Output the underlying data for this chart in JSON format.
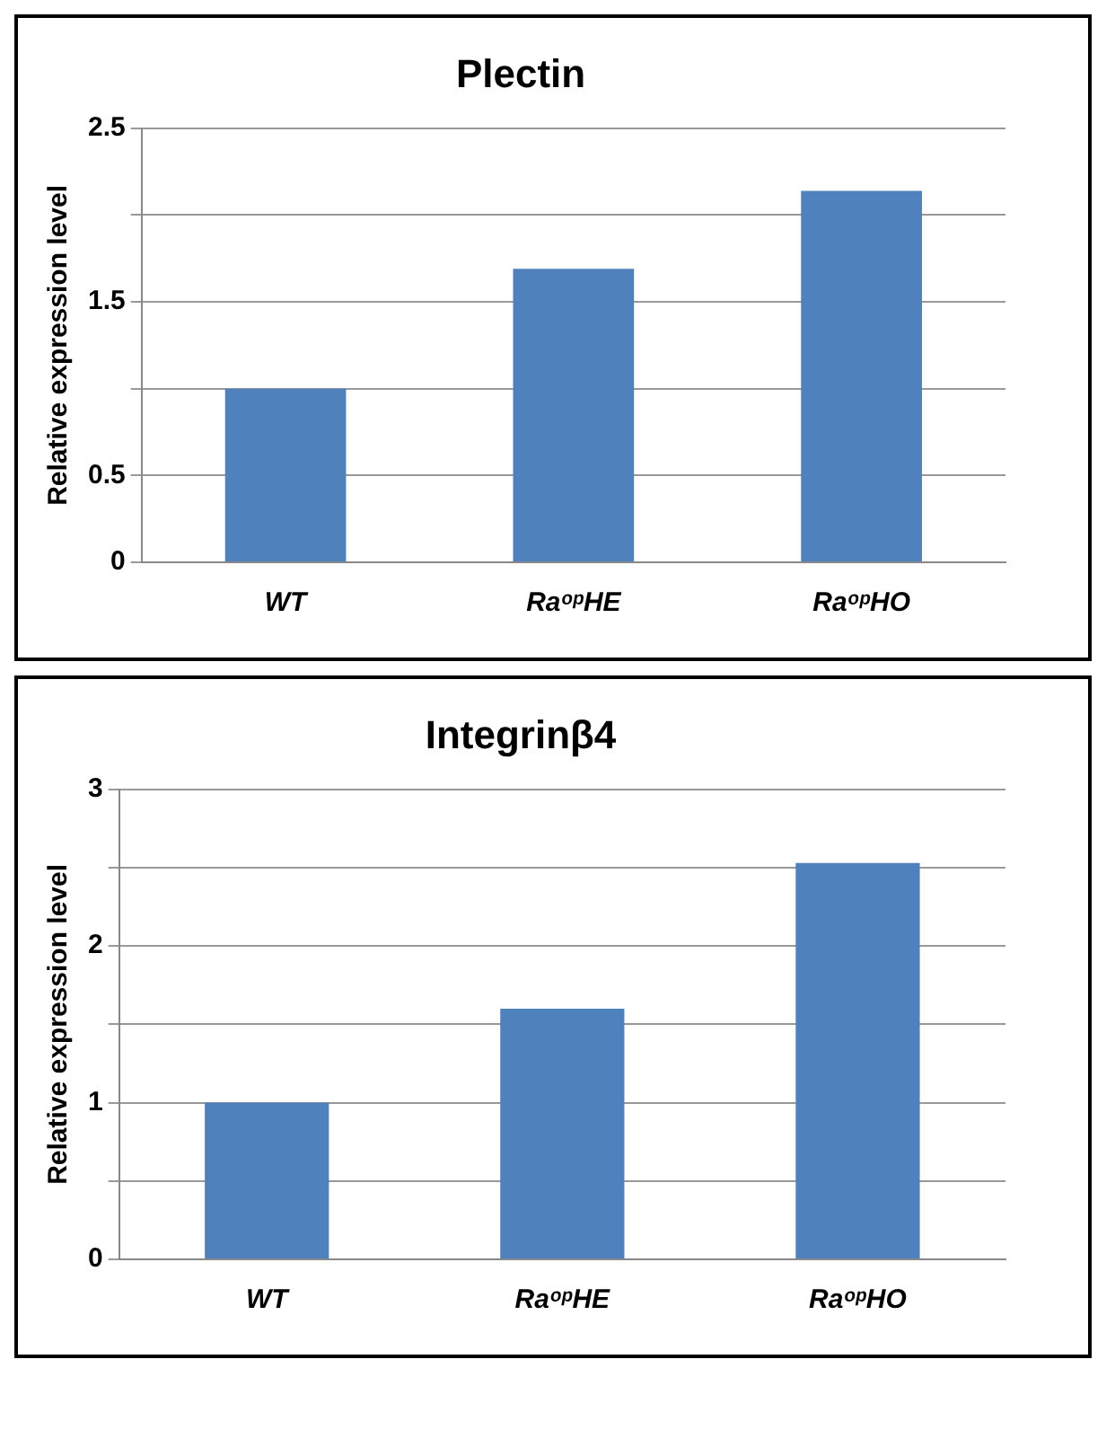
{
  "chart_data": [
    {
      "type": "bar",
      "title": "Plectin",
      "ylabel": "Relative expression level",
      "categories": [
        "WT",
        "RaᵒᵖHE",
        "RaᵒᵖHO"
      ],
      "values": [
        1.0,
        1.69,
        2.14
      ],
      "color": "#4f81bd",
      "ylim": [
        0,
        2.5
      ],
      "yticks": [
        0,
        0.5,
        {
          "value": 1,
          "label": null
        },
        1.5,
        {
          "value": 2,
          "label": null
        },
        2.5
      ],
      "grid": "y",
      "legend": false
    },
    {
      "type": "bar",
      "title": "Integrinβ4",
      "ylabel": "Relative expression level",
      "categories": [
        "WT",
        "RaᵒᵖHE",
        "RaᵒᵖHO"
      ],
      "values": [
        1.0,
        1.6,
        2.53
      ],
      "color": "#4f81bd",
      "ylim": [
        0,
        3
      ],
      "yticks": [
        0,
        {
          "value": 0.5,
          "label": null
        },
        1,
        {
          "value": 1.5,
          "label": null
        },
        2,
        {
          "value": 2.5,
          "label": null
        },
        3
      ],
      "grid": "y",
      "legend": false
    }
  ]
}
